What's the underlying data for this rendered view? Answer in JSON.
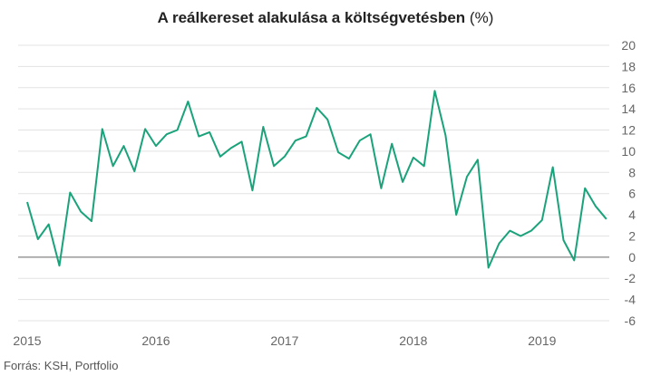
{
  "chart_data": {
    "type": "line",
    "title": "A reálkereset alakulása a költségvetésben",
    "title_unit": "(%)",
    "xlabel": "",
    "ylabel": "",
    "source": "Forrás: KSH, Portfolio",
    "x_tick_labels": [
      "2015",
      "2016",
      "2017",
      "2018",
      "2019"
    ],
    "y_ticks": [
      20,
      18,
      16,
      14,
      12,
      10,
      8,
      6,
      4,
      2,
      0,
      -2,
      -4,
      -6
    ],
    "ylim": [
      -6,
      20
    ],
    "x_start": "2015-01",
    "y_axis_position": "right",
    "grid": "horizontal",
    "zero_line": true,
    "colors": {
      "line": "#1aa37a",
      "grid": "#e3e3e3",
      "zero_line": "#666666"
    },
    "series": [
      {
        "values": [
          5.2,
          1.7,
          3.1,
          -0.8,
          6.1,
          4.3,
          3.4,
          12.1,
          8.6,
          10.5,
          8.1,
          12.1,
          10.5,
          11.6,
          12.0,
          14.7,
          11.4,
          11.8,
          9.5,
          10.3,
          10.9,
          6.3,
          12.3,
          8.6,
          9.5,
          11.0,
          11.4,
          14.1,
          13.0,
          9.9,
          9.3,
          11.0,
          11.6,
          6.5,
          10.7,
          7.1,
          9.4,
          8.6,
          15.7,
          11.5,
          4.0,
          7.6,
          9.2,
          -1.0,
          1.3,
          2.5,
          2.0,
          2.5,
          3.5,
          8.5,
          1.6,
          -0.3,
          6.5,
          4.8,
          3.6
        ]
      }
    ]
  }
}
